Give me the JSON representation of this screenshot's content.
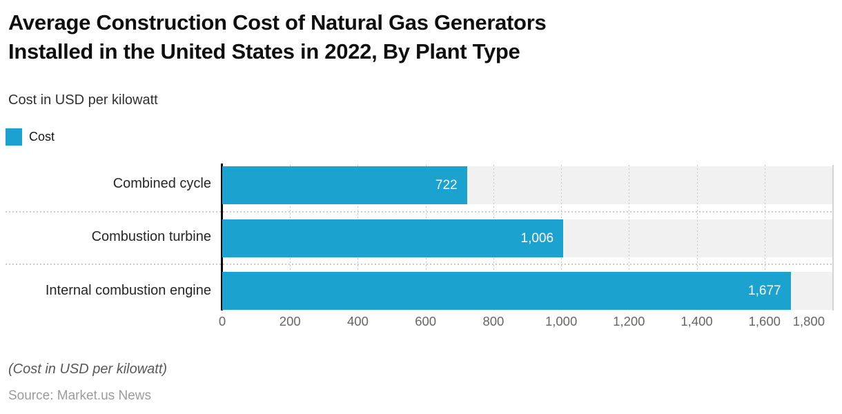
{
  "header": {
    "title_lines": [
      "Average Construction Cost of Natural Gas Generators",
      "Installed in the United States in 2022, By Plant Type"
    ],
    "subtitle": "Cost in USD per kilowatt"
  },
  "legend": {
    "items": [
      {
        "label": "Cost",
        "color": "#1CA2CE"
      }
    ]
  },
  "chart_data": {
    "type": "bar",
    "orientation": "horizontal",
    "title": "Average Construction Cost of Natural Gas Generators Installed in the United States in 2022, By Plant Type",
    "subtitle": "Cost in USD per kilowatt",
    "categories": [
      "Combined cycle",
      "Combustion turbine",
      "Internal combustion engine"
    ],
    "series": [
      {
        "name": "Cost",
        "values": [
          722,
          1006,
          1677
        ]
      }
    ],
    "value_labels": [
      "722",
      "1,006",
      "1,677"
    ],
    "xlim": [
      0,
      1800
    ],
    "xticks": [
      0,
      200,
      400,
      600,
      800,
      1000,
      1200,
      1400,
      1600,
      1800
    ],
    "xtick_labels": [
      "0",
      "200",
      "400",
      "600",
      "800",
      "1,000",
      "1,200",
      "1,400",
      "1,600",
      "1,800"
    ],
    "grid": "dotted vertical gridlines; dotted row separators; gray row bands",
    "legend_position": "top-left",
    "colors": {
      "bar": "#1CA2CE",
      "row_band": "#f1f1f1",
      "gridline": "#c5c5c5",
      "axis_line": "#0a0a0a",
      "value_label": "#ffffff"
    }
  },
  "footer": {
    "note": "(Cost in USD per kilowatt)",
    "source": "Source: Market.us News"
  }
}
